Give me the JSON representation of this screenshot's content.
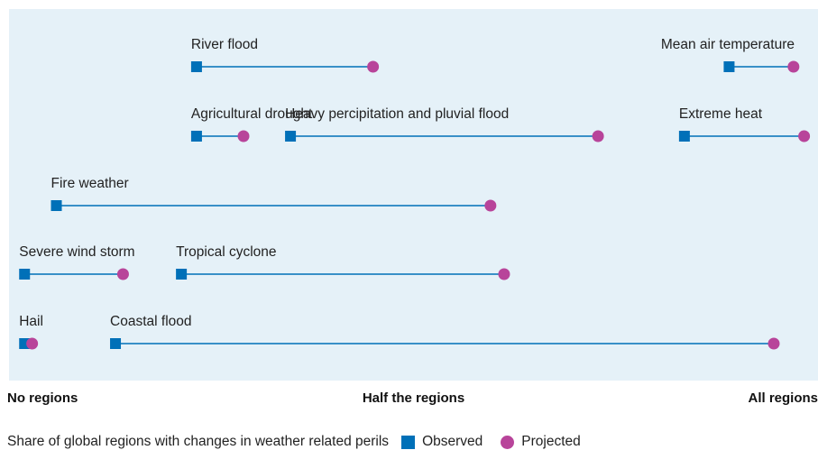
{
  "chart_data": {
    "type": "dumbbell",
    "x_axis": {
      "range": [
        0,
        1
      ],
      "labels": [
        {
          "value": 0,
          "text": "No regions"
        },
        {
          "value": 0.5,
          "text": "Half the regions"
        },
        {
          "value": 1,
          "text": "All regions"
        }
      ]
    },
    "caption": "Share of global regions with changes in weather related perils",
    "legend": [
      {
        "name": "Observed",
        "shape": "square",
        "color": "#0070b8"
      },
      {
        "name": "Projected",
        "shape": "circle",
        "color": "#b8449a"
      }
    ],
    "line_color": "#0070b8",
    "perils": [
      {
        "name": "River flood",
        "row": 1,
        "observed": 0.238,
        "projected": 0.471
      },
      {
        "name": "Mean air temperature",
        "row": 1,
        "observed": 0.941,
        "projected": 1.026
      },
      {
        "name": "Agricultural drought",
        "row": 2,
        "observed": 0.238,
        "projected": 0.3
      },
      {
        "name": "Heavy percipitation and pluvial flood",
        "row": 2,
        "observed": 0.362,
        "projected": 0.768
      },
      {
        "name": "Extreme heat",
        "row": 2,
        "observed": 0.882,
        "projected": 1.04
      },
      {
        "name": "Fire weather",
        "row": 3,
        "observed": 0.053,
        "projected": 0.626
      },
      {
        "name": "Severe wind storm",
        "row": 4,
        "observed": 0.011,
        "projected": 0.141
      },
      {
        "name": "Tropical cyclone",
        "row": 4,
        "observed": 0.218,
        "projected": 0.644
      },
      {
        "name": "Hail",
        "row": 5,
        "observed": 0.011,
        "projected": 0.021
      },
      {
        "name": "Coastal flood",
        "row": 5,
        "observed": 0.131,
        "projected": 1.0
      }
    ]
  }
}
